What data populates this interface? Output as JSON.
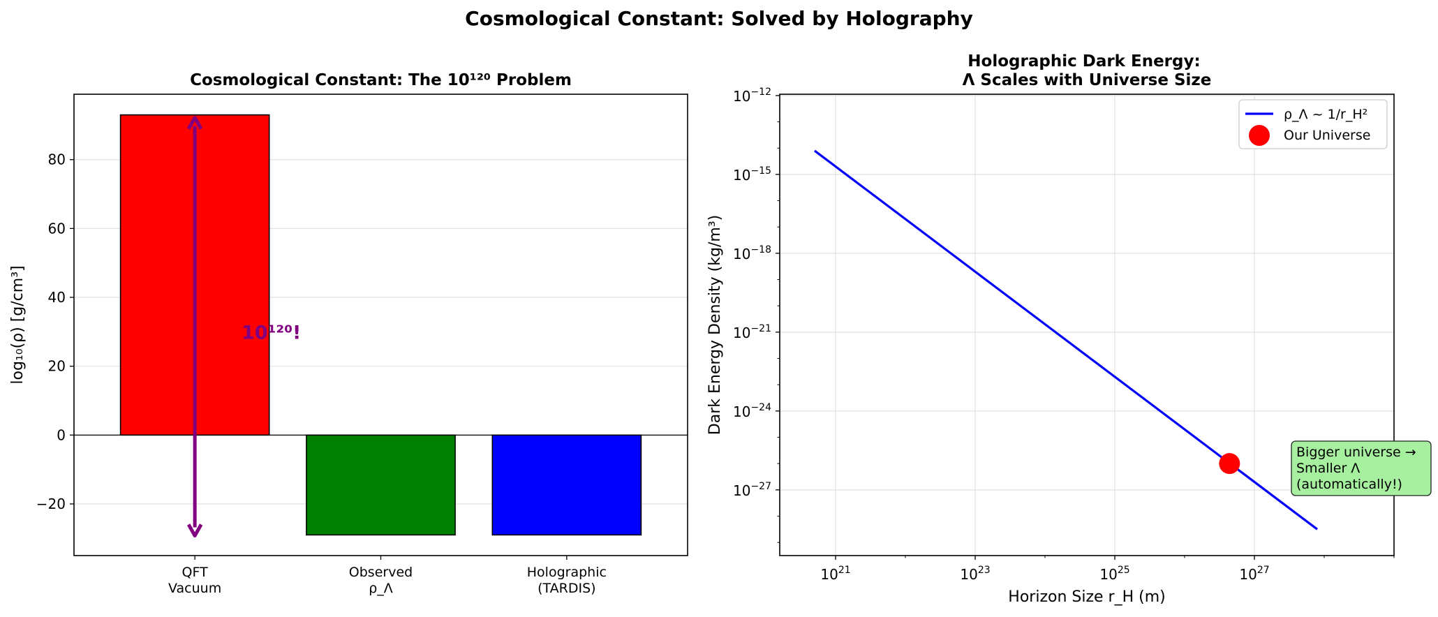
{
  "suptitle": "Cosmological Constant: Solved by Holography",
  "chart_data": [
    {
      "type": "bar",
      "title": "Cosmological Constant: The 10¹²⁰ Problem",
      "xlabel": "",
      "ylabel": "log₁₀(ρ) [g/cm³]",
      "categories": [
        [
          "QFT",
          "Vacuum"
        ],
        [
          "Observed",
          "ρ_Λ"
        ],
        [
          "Holographic",
          "(TARDIS)"
        ]
      ],
      "values": [
        93,
        -29,
        -29
      ],
      "colors": [
        "#ff0000",
        "#008000",
        "#0000ff"
      ],
      "ylim": [
        -35,
        99
      ],
      "yticks": [
        -20,
        0,
        20,
        40,
        60,
        80
      ],
      "ytick_labels": [
        "−20",
        "0",
        "20",
        "40",
        "60",
        "80"
      ],
      "grid": "horizontal",
      "annotation": {
        "text": "10¹²⁰!",
        "color": "#800080",
        "arrow_from": 93,
        "arrow_to": -28
      }
    },
    {
      "type": "line",
      "title": [
        "Holographic Dark Energy:",
        "Λ Scales with Universe Size"
      ],
      "xlabel": "Horizon Size r_H (m)",
      "ylabel": "Dark Energy Density (kg/m³)",
      "xscale": "log",
      "yscale": "log",
      "xlim_log10": [
        20.2,
        29.0
      ],
      "ylim_log10": [
        -29.5,
        -11.95
      ],
      "xticks": [
        21,
        23,
        25,
        27
      ],
      "yticks": [
        -12,
        -15,
        -18,
        -21,
        -24,
        -27
      ],
      "grid": "both",
      "legend_position": "top-right",
      "series": [
        {
          "name": "ρ_Λ ~ 1/r_H²",
          "color": "#0000ff",
          "x": [
            "1e20",
            "1e28"
          ],
          "y": [
            "2e-13",
            "2e-29"
          ]
        },
        {
          "name": "Our Universe",
          "color": "#ff0000",
          "marker": "circle",
          "x": [
            "4.4e26"
          ],
          "y": [
            "1e-26"
          ]
        }
      ],
      "annotation": {
        "lines": [
          "Bigger universe →",
          "Smaller Λ",
          "(automatically!)"
        ],
        "box_color": "#a6f0a0"
      }
    }
  ]
}
